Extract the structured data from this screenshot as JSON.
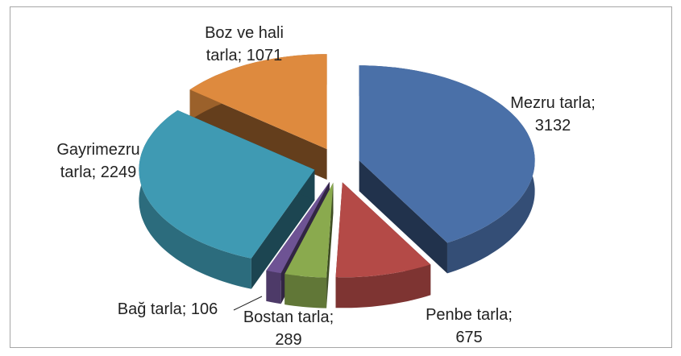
{
  "chart_data": {
    "type": "pie3d",
    "values": [
      3132,
      675,
      289,
      106,
      2249,
      1071
    ],
    "value_labels": [
      "Mezru tarla; 3132",
      "Penbe tarla; 675",
      "Bostan tarla; 289",
      "Bağ tarla; 106",
      "Gayrimezru tarla; 2249",
      "Boz ve hali tarla; 1071"
    ],
    "colors": [
      "#4a70a8",
      "#b44a47",
      "#8aaa4e",
      "#6e5394",
      "#3f9ab3",
      "#de8a3e"
    ]
  }
}
